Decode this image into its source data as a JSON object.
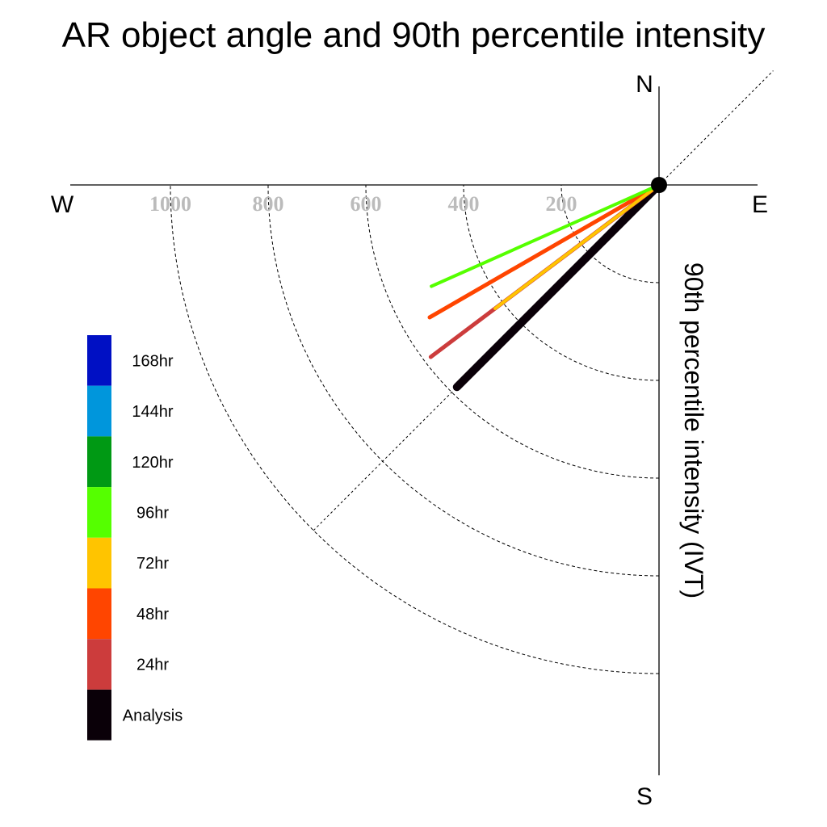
{
  "chart_data": {
    "type": "polar-vector",
    "title": "AR object angle and 90th percentile intensity",
    "radial_label": "90th percentile intensity (IVT)",
    "compass": {
      "north": "N",
      "south": "S",
      "east": "E",
      "west": "W"
    },
    "radial_ticks": [
      200,
      400,
      600,
      800,
      1000
    ],
    "rlim": [
      0,
      1000
    ],
    "grid": true,
    "reference_line_deg": 225,
    "series": [
      {
        "name": "Analysis",
        "color": "#0a0008",
        "intensity": 585,
        "angle_deg": 225,
        "width": 10
      },
      {
        "name": "24hr",
        "color": "#cc3c3c",
        "intensity": 585,
        "angle_deg": 233,
        "width": 5
      },
      {
        "name": "48hr",
        "color": "#ff4500",
        "intensity": 542,
        "angle_deg": 240,
        "width": 5
      },
      {
        "name": "72hr",
        "color": "#ffc400",
        "intensity": 420,
        "angle_deg": 233,
        "width": 4
      },
      {
        "name": "96hr",
        "color": "#55ff00",
        "intensity": 510,
        "angle_deg": 246,
        "width": 4
      }
    ],
    "legend": {
      "placement": "left",
      "items": [
        {
          "label": "168hr",
          "color": "#0010c4"
        },
        {
          "label": "144hr",
          "color": "#0096dc"
        },
        {
          "label": "120hr",
          "color": "#009914"
        },
        {
          "label": "96hr",
          "color": "#55ff00"
        },
        {
          "label": "72hr",
          "color": "#ffc400"
        },
        {
          "label": "48hr",
          "color": "#ff4500"
        },
        {
          "label": "24hr",
          "color": "#cc3c3c"
        },
        {
          "label": "Analysis",
          "color": "#0a0008"
        }
      ]
    }
  }
}
